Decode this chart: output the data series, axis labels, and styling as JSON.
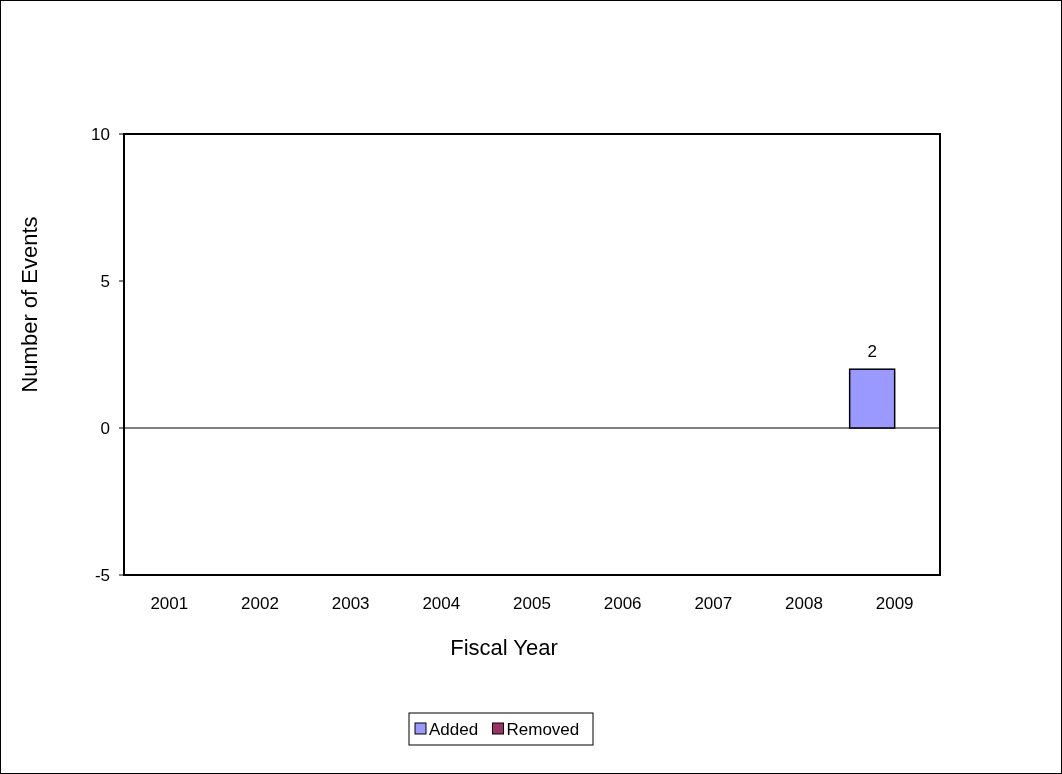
{
  "chart_data": {
    "type": "bar",
    "xlabel": "Fiscal Year",
    "ylabel": "Number of Events",
    "categories": [
      "2001",
      "2002",
      "2003",
      "2004",
      "2005",
      "2006",
      "2007",
      "2008",
      "2009"
    ],
    "series": [
      {
        "name": "Added",
        "color": "#9999ff",
        "values": [
          0,
          0,
          0,
          0,
          0,
          0,
          0,
          0,
          2
        ],
        "value_labels": [
          null,
          null,
          null,
          null,
          null,
          null,
          null,
          null,
          "2"
        ]
      },
      {
        "name": "Removed",
        "color": "#993366",
        "values": [
          0,
          0,
          0,
          0,
          0,
          0,
          0,
          0,
          0
        ]
      }
    ],
    "ylim": [
      -5,
      10
    ],
    "yticks": [
      -5,
      0,
      5,
      10
    ],
    "ref_lines": [
      {
        "axis": "y",
        "value": 0,
        "color": "#000000"
      }
    ],
    "legend": "bottom"
  }
}
